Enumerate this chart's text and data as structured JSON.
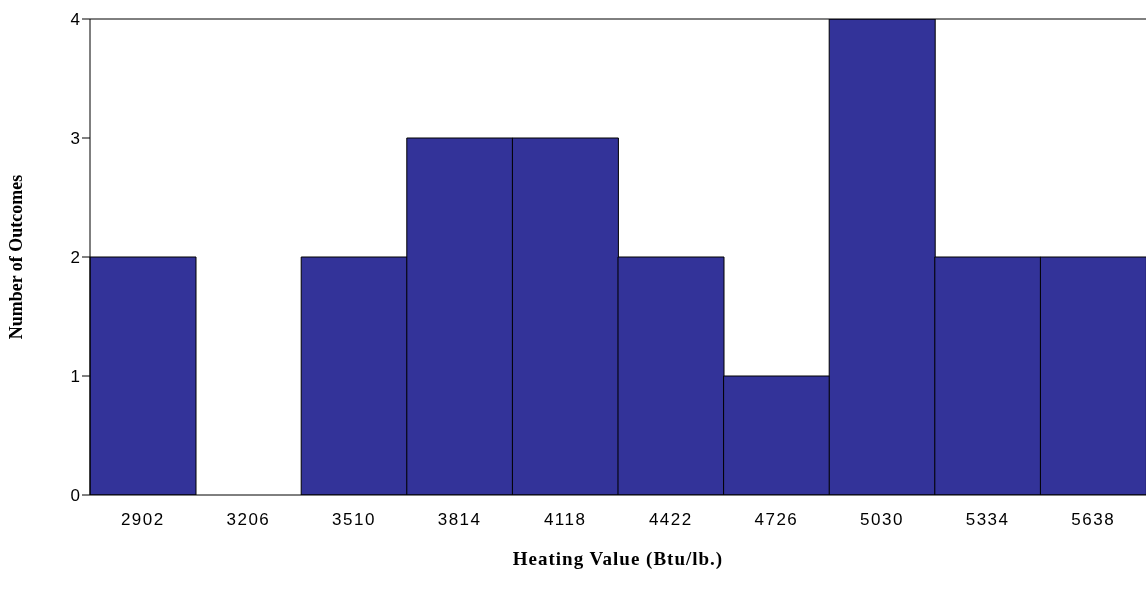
{
  "chart_data": {
    "type": "bar",
    "xlabel": "Heating Value (Btu/lb.)",
    "ylabel": "Number of Outcomes",
    "categories": [
      "2902",
      "3206",
      "3510",
      "3814",
      "4118",
      "4422",
      "4726",
      "5030",
      "5334",
      "5638"
    ],
    "values": [
      2,
      0,
      2,
      3,
      3,
      2,
      1,
      4,
      2,
      2
    ],
    "color": "#333399",
    "ylim": [
      0,
      4
    ],
    "yticks": [
      0,
      1,
      2,
      3,
      4
    ]
  }
}
